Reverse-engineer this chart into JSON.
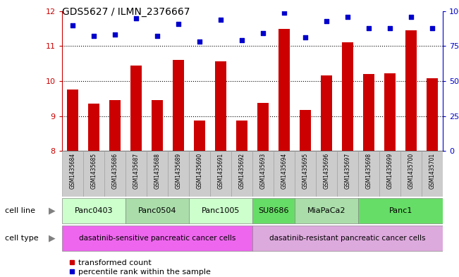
{
  "title": "GDS5627 / ILMN_2376667",
  "samples": [
    "GSM1435684",
    "GSM1435685",
    "GSM1435686",
    "GSM1435687",
    "GSM1435688",
    "GSM1435689",
    "GSM1435690",
    "GSM1435691",
    "GSM1435692",
    "GSM1435693",
    "GSM1435694",
    "GSM1435695",
    "GSM1435696",
    "GSM1435697",
    "GSM1435698",
    "GSM1435699",
    "GSM1435700",
    "GSM1435701"
  ],
  "bar_values": [
    9.75,
    9.35,
    9.45,
    10.45,
    9.45,
    10.6,
    8.88,
    10.57,
    8.87,
    9.38,
    11.5,
    9.17,
    10.17,
    11.1,
    10.2,
    10.23,
    11.45,
    10.07
  ],
  "dot_values": [
    90,
    82,
    83,
    95,
    82,
    91,
    78,
    94,
    79,
    84,
    99,
    81,
    93,
    96,
    88,
    88,
    96,
    88
  ],
  "ylim_left": [
    8,
    12
  ],
  "ylim_right": [
    0,
    100
  ],
  "yticks_left": [
    8,
    9,
    10,
    11,
    12
  ],
  "yticks_right": [
    0,
    25,
    50,
    75,
    100
  ],
  "ytick_labels_right": [
    "0",
    "25",
    "50",
    "75",
    "100%"
  ],
  "bar_color": "#cc0000",
  "dot_color": "#0000cc",
  "cell_lines": [
    {
      "label": "Panc0403",
      "start": 0,
      "end": 2,
      "color": "#ccffcc"
    },
    {
      "label": "Panc0504",
      "start": 3,
      "end": 5,
      "color": "#aaddaa"
    },
    {
      "label": "Panc1005",
      "start": 6,
      "end": 8,
      "color": "#ccffcc"
    },
    {
      "label": "SU8686",
      "start": 9,
      "end": 10,
      "color": "#66dd66"
    },
    {
      "label": "MiaPaCa2",
      "start": 11,
      "end": 13,
      "color": "#aaddaa"
    },
    {
      "label": "Panc1",
      "start": 14,
      "end": 17,
      "color": "#66dd66"
    }
  ],
  "cell_types": [
    {
      "label": "dasatinib-sensitive pancreatic cancer cells",
      "start": 0,
      "end": 8,
      "color": "#ee66ee"
    },
    {
      "label": "dasatinib-resistant pancreatic cancer cells",
      "start": 9,
      "end": 17,
      "color": "#ddaadd"
    }
  ],
  "legend_bar_label": "transformed count",
  "legend_dot_label": "percentile rank within the sample",
  "cell_line_row_label": "cell line",
  "cell_type_row_label": "cell type",
  "sample_bg_color": "#cccccc",
  "sample_border_color": "#999999",
  "axis_left_color": "#cc0000",
  "axis_right_color": "#0000cc",
  "grid_yticks": [
    9,
    10,
    11
  ]
}
